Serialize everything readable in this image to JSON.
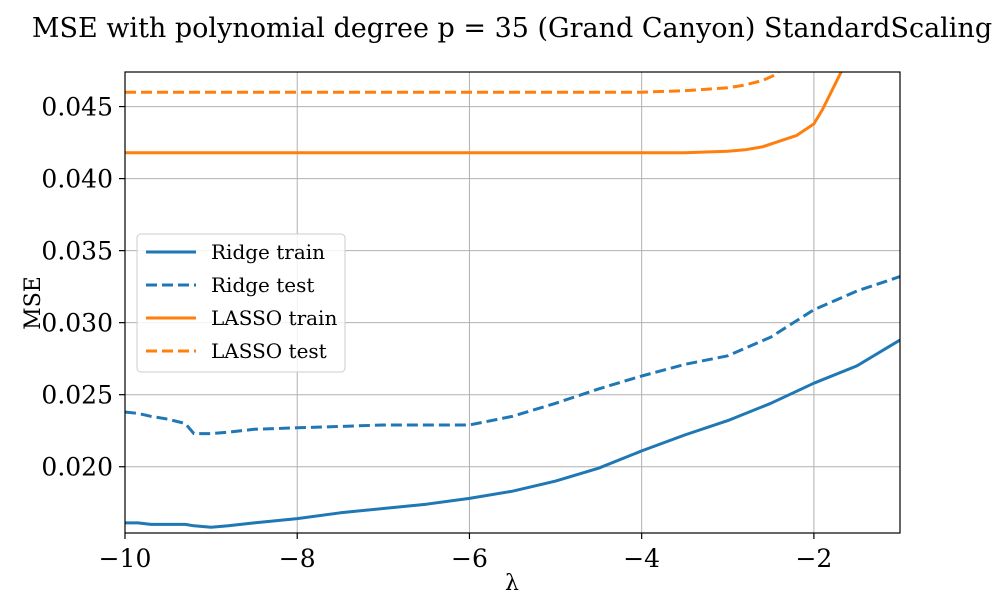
{
  "chart_data": {
    "type": "line",
    "title": "MSE with polynomial degree p = 35 (Grand Canyon) StandardScaling",
    "xlabel": "λ",
    "ylabel": "MSE",
    "xlim": [
      -10,
      -1
    ],
    "ylim": [
      0.0154,
      0.0474
    ],
    "xticks": [
      -10,
      -8,
      -6,
      -4,
      -2
    ],
    "xtick_labels": [
      "−10",
      "−8",
      "−6",
      "−4",
      "−2"
    ],
    "yticks": [
      0.02,
      0.025,
      0.03,
      0.035,
      0.04,
      0.045
    ],
    "ytick_labels": [
      "0.020",
      "0.025",
      "0.030",
      "0.035",
      "0.040",
      "0.045"
    ],
    "grid": true,
    "legend_position": "center-left",
    "series": [
      {
        "name": "Ridge train",
        "color": "#1f77b4",
        "dash": "solid",
        "x": [
          -10,
          -9.85,
          -9.7,
          -9.5,
          -9.3,
          -9.2,
          -9.0,
          -8.8,
          -8.5,
          -8.0,
          -7.5,
          -7.0,
          -6.5,
          -6.0,
          -5.5,
          -5.0,
          -4.5,
          -4.0,
          -3.5,
          -3.0,
          -2.5,
          -2.0,
          -1.5,
          -1.0
        ],
        "y": [
          0.0161,
          0.0161,
          0.016,
          0.016,
          0.016,
          0.0159,
          0.0158,
          0.0159,
          0.0161,
          0.0164,
          0.0168,
          0.0171,
          0.0174,
          0.0178,
          0.0183,
          0.019,
          0.0199,
          0.0211,
          0.0222,
          0.0232,
          0.0244,
          0.0258,
          0.027,
          0.0288
        ]
      },
      {
        "name": "Ridge test",
        "color": "#1f77b4",
        "dash": "dashed",
        "x": [
          -10,
          -9.85,
          -9.7,
          -9.5,
          -9.3,
          -9.2,
          -9.0,
          -8.8,
          -8.5,
          -8.0,
          -7.5,
          -7.0,
          -6.5,
          -6.0,
          -5.5,
          -5.0,
          -4.5,
          -4.0,
          -3.5,
          -3.0,
          -2.5,
          -2.0,
          -1.5,
          -1.0
        ],
        "y": [
          0.0238,
          0.0237,
          0.0235,
          0.0233,
          0.023,
          0.0223,
          0.0223,
          0.0224,
          0.0226,
          0.0227,
          0.0228,
          0.0229,
          0.0229,
          0.0229,
          0.0235,
          0.0244,
          0.0254,
          0.0263,
          0.0271,
          0.0277,
          0.029,
          0.0309,
          0.0322,
          0.0332
        ]
      },
      {
        "name": "LASSO train",
        "color": "#ff7f0e",
        "dash": "solid",
        "x": [
          -10,
          -9.0,
          -8.0,
          -7.0,
          -6.0,
          -5.0,
          -4.0,
          -3.5,
          -3.0,
          -2.8,
          -2.6,
          -2.4,
          -2.2,
          -2.0,
          -1.9,
          -1.8,
          -1.7,
          -1.65
        ],
        "y": [
          0.0418,
          0.0418,
          0.0418,
          0.0418,
          0.0418,
          0.0418,
          0.0418,
          0.0418,
          0.0419,
          0.042,
          0.0422,
          0.0426,
          0.043,
          0.0438,
          0.0448,
          0.046,
          0.0472,
          0.0478
        ]
      },
      {
        "name": "LASSO test",
        "color": "#ff7f0e",
        "dash": "dashed",
        "x": [
          -10,
          -9.0,
          -8.0,
          -7.0,
          -6.0,
          -5.0,
          -4.0,
          -3.5,
          -3.0,
          -2.8,
          -2.6,
          -2.45,
          -2.35
        ],
        "y": [
          0.046,
          0.046,
          0.046,
          0.046,
          0.046,
          0.046,
          0.046,
          0.0461,
          0.0463,
          0.0465,
          0.0468,
          0.0472,
          0.0478
        ]
      }
    ]
  }
}
